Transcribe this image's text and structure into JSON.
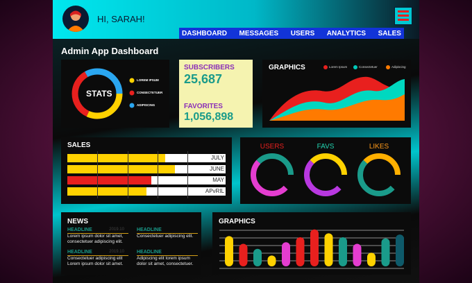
{
  "header": {
    "greeting": "HI, SARAH!"
  },
  "nav": {
    "items": [
      "DASHBOARD",
      "MESSAGES",
      "USERS",
      "ANALYTICS",
      "SALES"
    ]
  },
  "page": {
    "title": "Admin App Dashboard"
  },
  "stats": {
    "title": "STATS",
    "legend": [
      "LOREM IPSUM",
      "CONSECTETUER",
      "ADIPISCING"
    ],
    "colors": [
      "#ffd200",
      "#e8201e",
      "#2aa6f0"
    ]
  },
  "subscribers": {
    "label": "SUBSCRIBERS",
    "value": "25,687"
  },
  "favorites": {
    "label": "FAVORITES",
    "value": "1,056,898"
  },
  "graphics_top": {
    "title": "GRAPHICS",
    "legend": [
      "Lorem Ipsum",
      "Consectetuer",
      "Adipiscing"
    ],
    "colors": [
      "#e8201e",
      "#00c8b8",
      "#ff7a00"
    ]
  },
  "sales": {
    "title": "SALES",
    "rows": [
      {
        "label": "JULY",
        "value": 0.62,
        "color": "#ffd200"
      },
      {
        "label": "JUNE",
        "value": 0.68,
        "color": "#ffd200"
      },
      {
        "label": "MAY",
        "value": 0.53,
        "color": "#e8201e"
      },
      {
        "label": "APvRIL",
        "value": 0.5,
        "color": "#ffd200"
      }
    ]
  },
  "rings": [
    {
      "label": "USERS",
      "color": "#e8201e",
      "segments": [
        "#e43dd0",
        "#1a9b8a"
      ]
    },
    {
      "label": "FAVS",
      "color": "#22d3b0",
      "segments": [
        "#b838e0",
        "#ffd200"
      ]
    },
    {
      "label": "LIKES",
      "color": "#ff9a1a",
      "segments": [
        "#1a9b8a",
        "#ffb000"
      ]
    }
  ],
  "news": {
    "title": "NEWS",
    "items": [
      {
        "headline": "HEADLINE",
        "date": "2019.10",
        "lines": [
          "Lorem ipsum dolor sit amet,",
          "consectetuer adipiscing elit."
        ]
      },
      {
        "headline": "HEADLINE",
        "date": "",
        "lines": [
          "Consectetuer adipiscing elit."
        ]
      },
      {
        "headline": "HEADLINE",
        "date": "2019.10",
        "lines": [
          "Consectetuer adipiscing elit",
          "Lorem ipsum dolor sit amet."
        ]
      },
      {
        "headline": "HEADLINE",
        "date": "",
        "lines": [
          "Adipiscing elit lorem ipsum",
          "dolor sit amet, consectetuer."
        ]
      }
    ]
  },
  "graphics_bottom": {
    "title": "GRAPHICS",
    "bars": [
      {
        "v": 0.78,
        "c": "#ffd200"
      },
      {
        "v": 0.58,
        "c": "#e8201e"
      },
      {
        "v": 0.45,
        "c": "#1a9b8a"
      },
      {
        "v": 0.28,
        "c": "#ffd200"
      },
      {
        "v": 0.62,
        "c": "#e43dd0"
      },
      {
        "v": 0.75,
        "c": "#e8201e"
      },
      {
        "v": 0.95,
        "c": "#e8201e"
      },
      {
        "v": 0.85,
        "c": "#ffd200"
      },
      {
        "v": 0.75,
        "c": "#1a9b8a"
      },
      {
        "v": 0.58,
        "c": "#e43dd0"
      },
      {
        "v": 0.35,
        "c": "#ffd200"
      },
      {
        "v": 0.72,
        "c": "#1a9b8a"
      },
      {
        "v": 0.82,
        "c": "#0e5a6a"
      }
    ]
  }
}
